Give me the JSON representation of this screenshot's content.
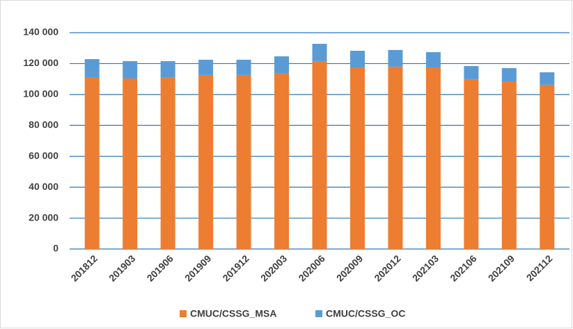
{
  "chart_data": {
    "type": "stacked_bar",
    "categories": [
      "201812",
      "201903",
      "201906",
      "201909",
      "201912",
      "202003",
      "202006",
      "202009",
      "202012",
      "202103",
      "202106",
      "202109",
      "202112"
    ],
    "series": [
      {
        "name": "CMUC/CSSG_MSA",
        "color": "#ed7d31",
        "values": [
          111200,
          110300,
          111200,
          112600,
          112600,
          113500,
          121600,
          117500,
          118000,
          117500,
          109900,
          108500,
          106300
        ]
      },
      {
        "name": "CMUC/CSSG_OC",
        "color": "#5b9bd5",
        "values": [
          11700,
          11300,
          10400,
          9900,
          9900,
          11200,
          11200,
          10800,
          10800,
          9900,
          8500,
          8600,
          8100
        ]
      }
    ],
    "ylim": [
      0,
      140000
    ],
    "yticks": [
      0,
      {
        "value": 20000,
        "label": "20 000"
      },
      {
        "value": 40000,
        "label": "40 000"
      },
      {
        "value": 60000,
        "label": "60 000"
      },
      {
        "value": 80000,
        "label": "80 000"
      },
      {
        "value": 100000,
        "label": "100 000"
      },
      {
        "value": 120000,
        "label": "120 000"
      },
      {
        "value": 140000,
        "label": "140 000"
      }
    ],
    "grid": true,
    "legend": "bottom"
  }
}
